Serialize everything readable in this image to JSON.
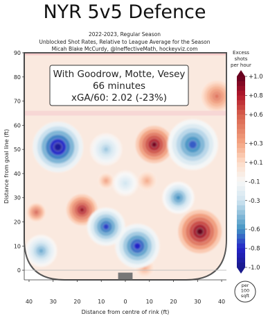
{
  "title": "NYR 5v5 Defence",
  "subtitle_lines": [
    "2022-2023, Regular Season",
    "Unblocked Shot Rates, Relative to League Average for the Season",
    "Micah Blake McCurdy, @IneffectiveMath, hockeyviz.com"
  ],
  "annotation_lines": [
    "With Goodrow, Motte, Vesey",
    "66 minutes",
    "xGA/60: 2.02 (-23%)"
  ],
  "chart_data": {
    "type": "heatmap",
    "xlabel": "Distance from centre of rink (ft)",
    "ylabel": "Distance from goal line (ft)",
    "xlim": [
      -42,
      42
    ],
    "ylim": [
      -4,
      90
    ],
    "x_ticks": [
      40,
      30,
      20,
      10,
      0,
      10,
      20,
      30,
      40
    ],
    "y_ticks": [
      0,
      10,
      20,
      30,
      40,
      50,
      60,
      70,
      80,
      90
    ],
    "colorbar": {
      "title_lines": [
        "Excess",
        "shots",
        "per hour"
      ],
      "range": [
        -1.0,
        1.0
      ],
      "tick_labels": [
        "+1.0",
        "+0.8",
        "+0.6",
        "+0.3",
        "+0.1",
        "-0.1",
        "-0.3",
        "-0.6",
        "-0.8",
        "-1.0"
      ],
      "tick_values": [
        1.0,
        0.8,
        0.6,
        0.3,
        0.1,
        -0.1,
        -0.3,
        -0.6,
        -0.8,
        -1.0
      ],
      "colors": [
        "#67001f",
        "#b2182b",
        "#d6604d",
        "#f4a582",
        "#fddbc7",
        "#f7f7f7",
        "#d1e5f0",
        "#4393c3",
        "#2424c8",
        "#1a1a8c"
      ]
    },
    "unit_label_lines": [
      "per",
      "100",
      "sqft"
    ],
    "hotspots": [
      {
        "x": 31,
        "y": 16,
        "value": 1.0,
        "spread": 7
      },
      {
        "x": 12,
        "y": 52,
        "value": 0.95,
        "spread": 6
      },
      {
        "x": -18,
        "y": 25,
        "value": 0.85,
        "spread": 5
      },
      {
        "x": 38,
        "y": 72,
        "value": 0.5,
        "spread": 5
      },
      {
        "x": 9,
        "y": 37,
        "value": 0.3,
        "spread": 3
      },
      {
        "x": -8,
        "y": 37,
        "value": 0.35,
        "spread": 2.5
      },
      {
        "x": -37,
        "y": 24,
        "value": 0.6,
        "spread": 3
      },
      {
        "x": 8,
        "y": 1,
        "value": 0.3,
        "spread": 3
      },
      {
        "x": -28,
        "y": 51,
        "value": -0.95,
        "spread": 8
      },
      {
        "x": 28,
        "y": 52,
        "value": -0.7,
        "spread": 8
      },
      {
        "x": 5,
        "y": 10,
        "value": -0.8,
        "spread": 7
      },
      {
        "x": -8,
        "y": 18,
        "value": -0.75,
        "spread": 6
      },
      {
        "x": -35,
        "y": 8,
        "value": -0.5,
        "spread": 5
      },
      {
        "x": -8,
        "y": 50,
        "value": -0.4,
        "spread": 5
      },
      {
        "x": 22,
        "y": 30,
        "value": -0.6,
        "spread": 5
      },
      {
        "x": 0,
        "y": 36,
        "value": -0.3,
        "spread": 4
      }
    ]
  }
}
